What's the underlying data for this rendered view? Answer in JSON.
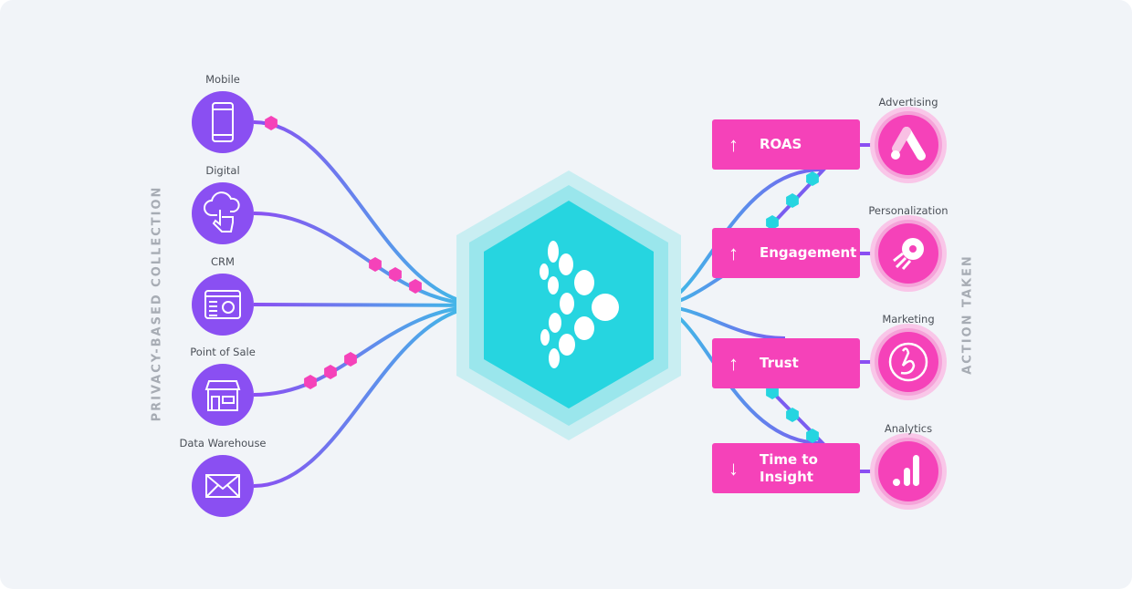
{
  "left_title": "PRIVACY-BASED COLLECTION",
  "right_title": "ACTION TAKEN",
  "sources": [
    {
      "label": "Mobile",
      "icon": "mobile-phone-icon"
    },
    {
      "label": "Digital",
      "icon": "cloud-touch-icon"
    },
    {
      "label": "CRM",
      "icon": "crm-settings-icon"
    },
    {
      "label": "Point of Sale",
      "icon": "storefront-icon"
    },
    {
      "label": "Data Warehouse",
      "icon": "envelope-icon"
    }
  ],
  "actions": [
    {
      "label": "ROAS",
      "direction": "up",
      "arrow": "↑",
      "category": "Advertising",
      "icon": "google-ads-icon"
    },
    {
      "label": "Engagement",
      "direction": "up",
      "arrow": "↑",
      "category": "Personalization",
      "icon": "personalization-logo-icon"
    },
    {
      "label": "Trust",
      "direction": "up",
      "arrow": "↑",
      "category": "Marketing",
      "icon": "braze-logo-icon"
    },
    {
      "label": "Time to Insight",
      "direction": "down",
      "arrow": "↓",
      "category": "Analytics",
      "icon": "google-analytics-icon"
    }
  ],
  "colors": {
    "purple": "#8a4ff2",
    "pink": "#f542b9",
    "cyan": "#26d5e0",
    "background": "#f1f4f8"
  }
}
